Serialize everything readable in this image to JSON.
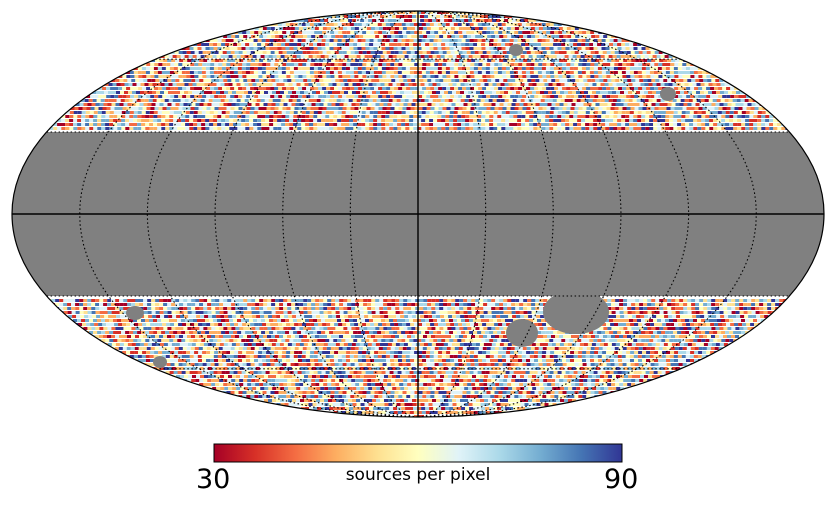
{
  "map": {
    "projection": "mollweide",
    "masked_color": "#808080",
    "masked_band_lat_deg": [
      -30,
      30
    ],
    "graticule": {
      "meridian_step_deg": 30,
      "parallel_step_deg": 30,
      "style": "dotted"
    }
  },
  "colorbar": {
    "min_label": "30",
    "max_label": "90",
    "label": "sources per pixel",
    "colormap": "RdYlBu",
    "colors": [
      "#a50026",
      "#d73027",
      "#f46d43",
      "#fdae61",
      "#fee090",
      "#ffffbf",
      "#e0f3f8",
      "#abd9e9",
      "#74add1",
      "#4575b4",
      "#313695"
    ]
  }
}
